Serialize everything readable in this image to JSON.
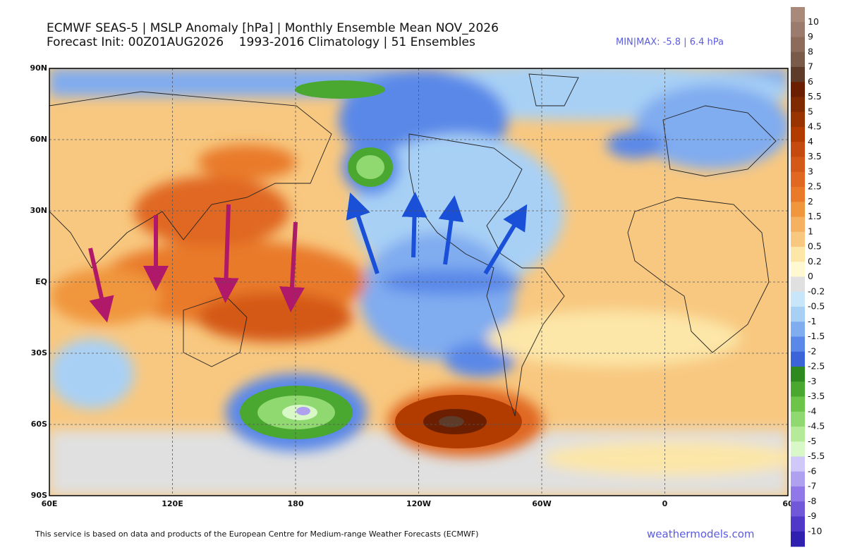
{
  "header": {
    "title_line1": "ECMWF SEAS-5 | MSLP Anomaly [hPa] | Monthly Ensemble Mean NOV_2026",
    "title_line2": "Forecast Init: 00Z01AUG2026    1993-2016 Climatology | 51 Ensembles",
    "minmax": "MIN|MAX: -5.8 | 6.4 hPa"
  },
  "map": {
    "lat_labels": [
      "90N",
      "60N",
      "30N",
      "EQ",
      "30S",
      "60S",
      "90S"
    ],
    "lon_labels": [
      "60E",
      "120E",
      "180",
      "120W",
      "60W",
      "0",
      "60"
    ]
  },
  "colorbar": {
    "levels": [
      10,
      9,
      8,
      7,
      6,
      5.5,
      5,
      4.5,
      4,
      3.5,
      3,
      2.5,
      2,
      1.5,
      1,
      0.5,
      0.2,
      0,
      -0.2,
      -0.5,
      -1,
      -1.5,
      -2,
      -2.5,
      -3,
      -3.5,
      -4,
      -4.5,
      -5,
      -5.5,
      -6,
      -7,
      -8,
      -9,
      -10
    ],
    "colors": [
      "#a8897a",
      "#9b7b6d",
      "#8c6b5b",
      "#7a5a48",
      "#5e3a28",
      "#6b1f00",
      "#7f2a00",
      "#993300",
      "#b23c00",
      "#c44a10",
      "#d45818",
      "#e06820",
      "#e97a2a",
      "#f0963c",
      "#f5b060",
      "#f8c880",
      "#fce6a8",
      "#fff8d0",
      "#e0e0e0",
      "#c8e6fa",
      "#a8d0f5",
      "#80acf0",
      "#5a88e8",
      "#3a64d8",
      "#2e8a1e",
      "#4aa830",
      "#6cc448",
      "#90d870",
      "#b4ea98",
      "#d8f8c8",
      "#d0c8f8",
      "#b0a0f0",
      "#9078e8",
      "#7058d8",
      "#5038c8",
      "#3020b0"
    ]
  },
  "footer": {
    "credit": "This service is based on data and products of the European Centre for Medium-range Weather Forecasts (ECMWF)",
    "site": "weathermodels.com"
  }
}
